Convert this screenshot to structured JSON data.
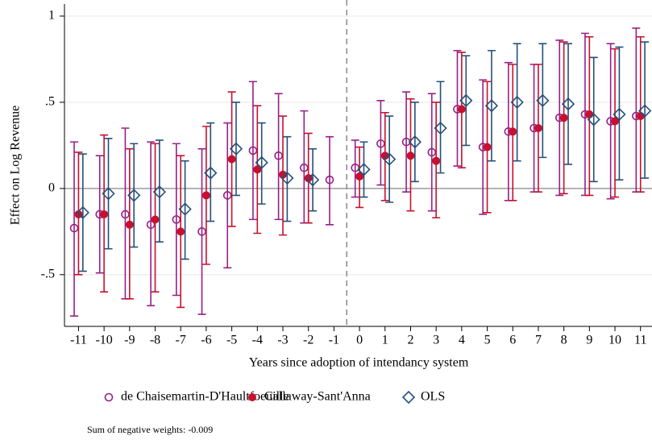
{
  "chart_data": {
    "type": "errorbar",
    "x_label": "Years since adoption of intendancy system",
    "y_label": "Effect on Log Revenue",
    "note": "Sum of negative weights: -0.009",
    "x": [
      -11,
      -10,
      -9,
      -8,
      -7,
      -6,
      -5,
      -4,
      -3,
      -2,
      -1,
      0,
      1,
      2,
      3,
      4,
      5,
      6,
      7,
      8,
      9,
      10,
      11
    ],
    "xlim": [
      -11.55,
      11.45
    ],
    "xticks": [
      -11,
      -10,
      -9,
      -8,
      -7,
      -6,
      -5,
      -4,
      -3,
      -2,
      -1,
      0,
      1,
      2,
      3,
      4,
      5,
      6,
      7,
      8,
      9,
      10,
      11
    ],
    "ylim": [
      -0.8,
      1.07
    ],
    "yticks": [
      {
        "value": -0.5,
        "label": "-.5"
      },
      0,
      {
        "value": 0.5,
        "label": ".5"
      },
      1
    ],
    "grid": true,
    "vline": -0.5,
    "series": [
      {
        "name": "de Chaisemartin-D'Haultfoeuille",
        "color": "#962088",
        "marker": "circle-open",
        "values": [
          -0.23,
          -0.15,
          -0.15,
          -0.21,
          -0.18,
          -0.25,
          -0.04,
          0.22,
          0.19,
          0.12,
          0.05,
          0.12,
          0.26,
          0.27,
          0.21,
          0.46,
          0.24,
          0.33,
          0.35,
          0.41,
          0.43,
          0.39,
          0.42
        ],
        "lower": [
          -0.74,
          -0.49,
          -0.64,
          -0.68,
          -0.62,
          -0.73,
          -0.46,
          -0.18,
          -0.18,
          -0.2,
          -0.21,
          -0.05,
          0.02,
          -0.02,
          -0.13,
          0.13,
          -0.15,
          -0.07,
          -0.02,
          -0.04,
          -0.04,
          -0.06,
          -0.02
        ],
        "upper": [
          0.27,
          0.19,
          0.35,
          0.27,
          0.26,
          0.23,
          0.38,
          0.62,
          0.55,
          0.45,
          0.3,
          0.28,
          0.51,
          0.56,
          0.55,
          0.8,
          0.63,
          0.73,
          0.72,
          0.86,
          0.9,
          0.84,
          0.93
        ]
      },
      {
        "name": "Callaway-Sant'Anna",
        "color": "#c8102e",
        "marker": "circle",
        "values": [
          -0.15,
          -0.15,
          -0.21,
          -0.18,
          -0.25,
          -0.04,
          0.17,
          0.11,
          0.08,
          0.06,
          null,
          0.07,
          0.19,
          0.19,
          0.16,
          0.46,
          0.24,
          0.33,
          0.35,
          0.41,
          0.43,
          0.39,
          0.42
        ],
        "lower": [
          -0.5,
          -0.6,
          -0.64,
          -0.6,
          -0.69,
          -0.44,
          -0.22,
          -0.26,
          -0.27,
          -0.2,
          null,
          -0.11,
          -0.07,
          -0.13,
          -0.17,
          0.12,
          -0.14,
          -0.07,
          -0.02,
          -0.03,
          -0.04,
          -0.05,
          -0.02
        ],
        "upper": [
          0.21,
          0.31,
          0.23,
          0.26,
          0.19,
          0.36,
          0.56,
          0.48,
          0.42,
          0.32,
          null,
          0.24,
          0.44,
          0.52,
          0.5,
          0.79,
          0.62,
          0.72,
          0.72,
          0.85,
          0.88,
          0.81,
          0.88
        ]
      },
      {
        "name": "OLS",
        "color": "#24507a",
        "marker": "diamond-open",
        "values": [
          -0.14,
          -0.03,
          -0.04,
          -0.02,
          -0.12,
          0.09,
          0.23,
          0.15,
          0.06,
          0.05,
          null,
          0.11,
          0.17,
          0.27,
          0.35,
          0.51,
          0.48,
          0.5,
          0.51,
          0.49,
          0.4,
          0.43,
          0.45
        ],
        "lower": [
          -0.48,
          -0.35,
          -0.34,
          -0.31,
          -0.41,
          -0.19,
          -0.04,
          -0.09,
          -0.19,
          -0.13,
          null,
          -0.05,
          -0.08,
          0.04,
          0.09,
          0.25,
          0.16,
          0.16,
          0.18,
          0.14,
          0.04,
          0.05,
          0.06
        ],
        "upper": [
          0.2,
          0.29,
          0.26,
          0.28,
          0.16,
          0.38,
          0.5,
          0.38,
          0.3,
          0.23,
          null,
          0.27,
          0.42,
          0.5,
          0.62,
          0.77,
          0.8,
          0.84,
          0.84,
          0.84,
          0.76,
          0.82,
          0.85
        ]
      }
    ]
  }
}
